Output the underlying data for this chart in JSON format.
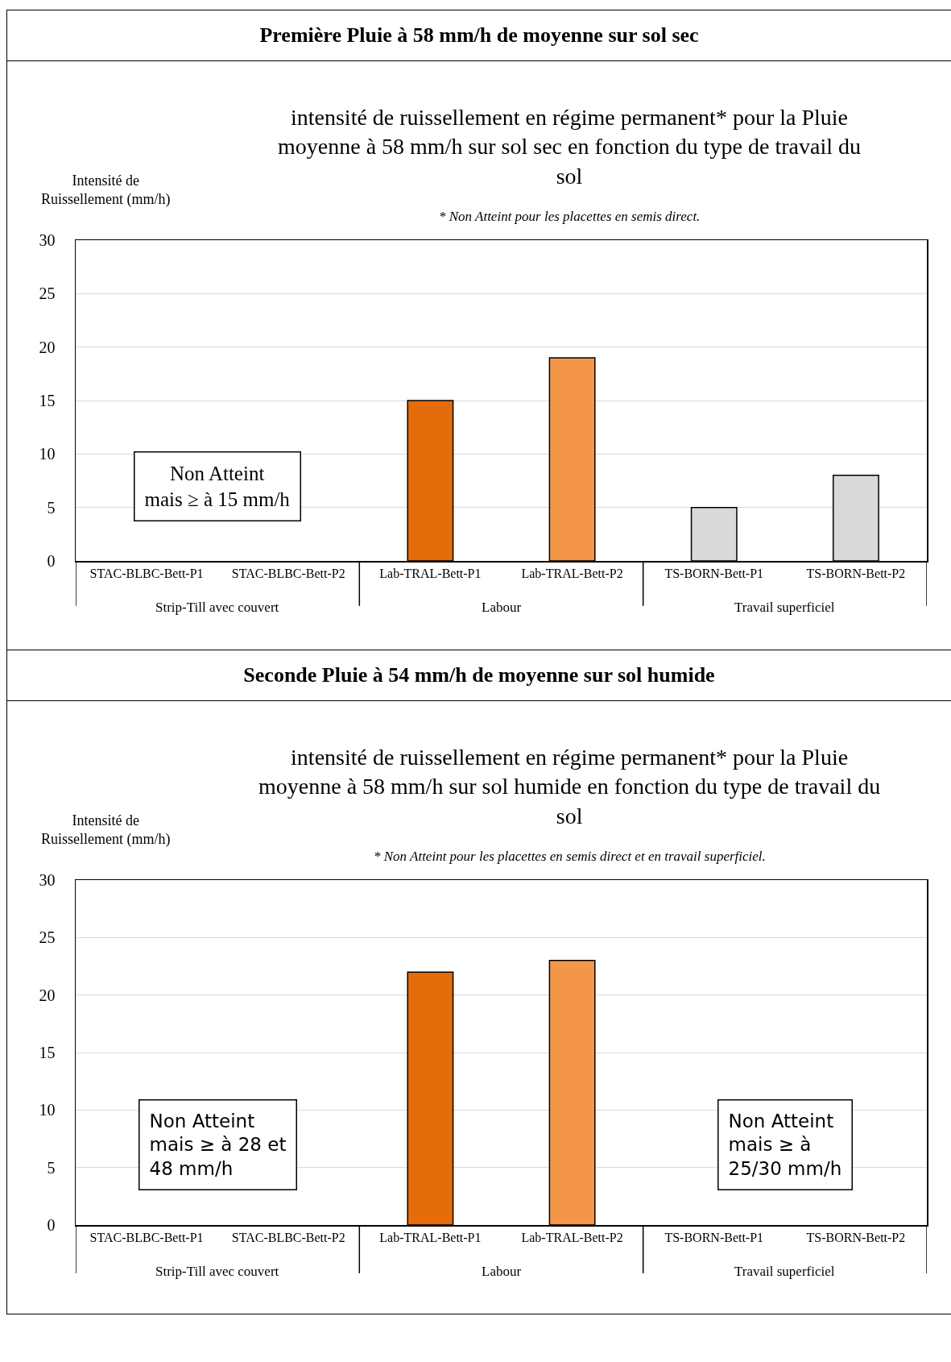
{
  "chart_data": [
    {
      "type": "bar",
      "title": "Première Pluie à 58 mm/h de moyenne sur sol sec",
      "subtitle": "intensité de ruissellement en régime permanent* pour la Pluie moyenne à 58 mm/h sur sol sec en fonction du type de travail du sol",
      "ylabel": "Intensité de\nRuissellement (mm/h)",
      "categories": [
        "STAC-BLBC-Bett-P1",
        "STAC-BLBC-Bett-P2",
        "Lab-TRAL-Bett-P1",
        "Lab-TRAL-Bett-P2",
        "TS-BORN-Bett-P1",
        "TS-BORN-Bett-P2"
      ],
      "values": [
        null,
        null,
        15,
        19,
        5,
        8
      ],
      "colors": [
        "#e46c0a",
        "#f4964a",
        "#e46c0a",
        "#f4964a",
        "#d9d9d9",
        "#d9d9d9"
      ],
      "ylim": [
        0,
        30
      ],
      "yticks": [
        0,
        5,
        10,
        15,
        20,
        25,
        30
      ],
      "grid": "y",
      "annotations": [
        "* Non Atteint pour les placettes en semis direct.",
        "Strip-Till avec couvert",
        "Labour",
        "Travail superficiel",
        "Non Atteint\nmais ≥ à 15 mm/h"
      ]
    },
    {
      "type": "bar",
      "title": "Seconde Pluie à 54 mm/h de moyenne sur sol humide",
      "subtitle": "intensité de ruissellement en régime permanent* pour la Pluie moyenne à 58 mm/h sur sol humide en fonction du type de travail du sol",
      "ylabel": "Intensité de\nRuissellement (mm/h)",
      "categories": [
        "STAC-BLBC-Bett-P1",
        "STAC-BLBC-Bett-P2",
        "Lab-TRAL-Bett-P1",
        "Lab-TRAL-Bett-P2",
        "TS-BORN-Bett-P1",
        "TS-BORN-Bett-P2"
      ],
      "values": [
        null,
        null,
        22,
        23,
        null,
        null
      ],
      "colors": [
        "#e46c0a",
        "#f4964a",
        "#e46c0a",
        "#f4964a",
        "#d9d9d9",
        "#d9d9d9"
      ],
      "ylim": [
        0,
        30
      ],
      "yticks": [
        0,
        5,
        10,
        15,
        20,
        25,
        30
      ],
      "grid": "y",
      "annotations": [
        "* Non Atteint pour les placettes en semis direct et en travail superficiel.",
        "Strip-Till avec couvert",
        "Labour",
        "Travail superficiel",
        "Non Atteint\nmais ≥ à 28 et\n48 mm/h",
        "Non Atteint\nmais ≥ à\n25/30 mm/h"
      ]
    }
  ]
}
